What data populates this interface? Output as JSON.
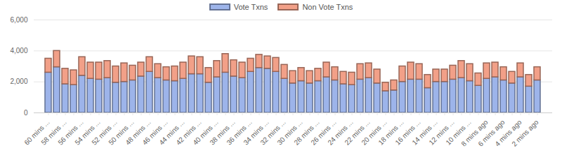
{
  "chart_data": {
    "type": "bar",
    "stacked": true,
    "grid": true,
    "legend": "top",
    "categories": [
      "60 mins ...",
      null,
      "58 mins ...",
      null,
      "56 mins ...",
      null,
      "54 mins ...",
      null,
      "52 mins ...",
      null,
      "50 mins ...",
      null,
      "48 mins ...",
      null,
      "46 mins ...",
      null,
      "44 mins ...",
      null,
      "42 mins ...",
      null,
      "40 mins ...",
      null,
      "38 mins ...",
      null,
      "36 mins ...",
      null,
      "34 mins ...",
      null,
      "32 mins ...",
      null,
      "30 mins ...",
      null,
      "28 mins ...",
      null,
      "26 mins ...",
      null,
      "24 mins ...",
      null,
      "22 mins ...",
      null,
      "20 mins ...",
      null,
      "18 mins ...",
      null,
      "16 mins ...",
      null,
      "14 mins ...",
      null,
      "12 mins ...",
      null,
      "10 mins ...",
      null,
      "8 mins ago",
      null,
      "6 mins ago",
      null,
      "4 mins ago",
      null,
      "2 mins ago"
    ],
    "series": [
      {
        "name": "Vote Txns",
        "color": "#9db4ea",
        "values": [
          2600,
          2950,
          1850,
          1800,
          2400,
          2200,
          2150,
          2250,
          1950,
          2000,
          2100,
          2350,
          2650,
          2250,
          2100,
          2050,
          2200,
          2500,
          2500,
          1950,
          2300,
          2600,
          2350,
          2250,
          2650,
          2900,
          2850,
          2650,
          2200,
          1900,
          2050,
          1900,
          2050,
          2300,
          2100,
          1850,
          1800,
          2150,
          2250,
          1900,
          1400,
          1450,
          2000,
          2150,
          2150,
          1600,
          2000,
          2000,
          2150,
          2250,
          2050,
          1750,
          2200,
          2300,
          2100,
          1900,
          2300,
          1700,
          2100
        ]
      },
      {
        "name": "Non Vote Txns",
        "color": "#f2a088",
        "values": [
          900,
          1050,
          1000,
          950,
          1200,
          1050,
          1100,
          1100,
          1050,
          1200,
          950,
          900,
          950,
          900,
          850,
          950,
          1050,
          1150,
          1100,
          950,
          1050,
          1200,
          1050,
          1000,
          850,
          850,
          800,
          900,
          900,
          800,
          850,
          800,
          800,
          950,
          850,
          800,
          800,
          1000,
          950,
          900,
          550,
          650,
          1000,
          1100,
          1000,
          850,
          800,
          800,
          900,
          1100,
          1100,
          800,
          1000,
          950,
          850,
          750,
          900,
          750,
          850
        ]
      }
    ],
    "ylim": [
      0,
      6000
    ],
    "yticks": [
      0,
      2000,
      4000,
      6000
    ]
  }
}
